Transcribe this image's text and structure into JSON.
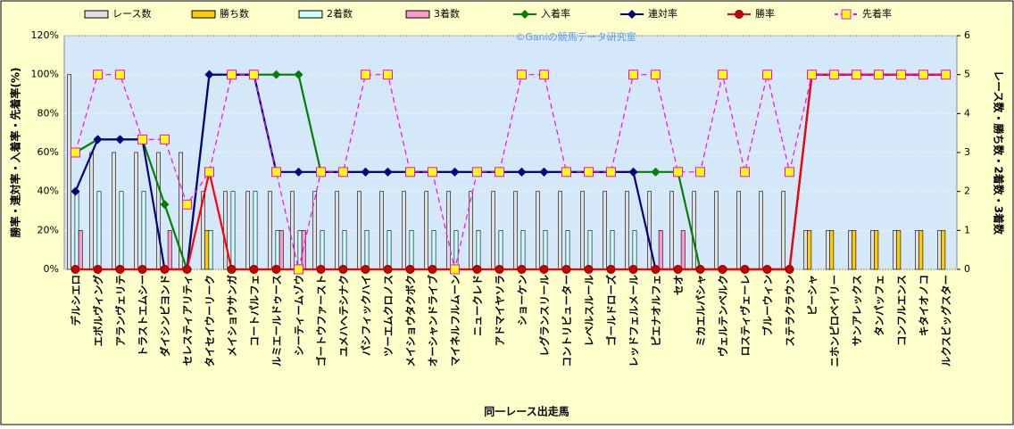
{
  "chart_data": {
    "type": "combo",
    "watermark": "©Ganiの競馬データ研究室",
    "x_label": "同一レース出走馬",
    "y_label": "勝率・連対率・入着率・先着率(%)",
    "y2_label": "レース数・勝ち数・2着数・3着数",
    "categories": [
      "デルシエロ",
      "エボルヴィング",
      "アランヴェリテ",
      "トラストエムシー",
      "ダイシンビヨンド",
      "セレスティアリティ",
      "タイセイウーリーク",
      "メイショウサンガ",
      "コートパルフェ",
      "ルミエールドゥース",
      "シーティームゾウ",
      "ゴートウファースト",
      "ユメハヘテシナク",
      "パシフィックハイ",
      "ツーエムクロノス",
      "メイショウタクボク",
      "オーシャンドライブ",
      "マイネルフルムーン",
      "ニュークレド",
      "アドマイヤソラ",
      "ショーケン",
      "レグランスリール",
      "コントリビューター",
      "レベルスルール",
      "ゴールドローズ",
      "レッドフェルメール",
      "ピエナオルフェ",
      "セオ",
      "ミカエルパシャ",
      "ヴェルテンベルク",
      "ロスティヴェーレ",
      "ブルーウィン",
      "ステラクラウン",
      "ピーシャ",
      "ニホンピロベイリー",
      "サンアレックス",
      "タンパッフェ",
      "コンフルエンス",
      "キタイオノコ",
      "ルクスビッグスター"
    ],
    "ylim": [
      0,
      120
    ],
    "yticks": [
      {
        "value": 0,
        "label": "0%"
      },
      {
        "value": 20,
        "label": "20%"
      },
      {
        "value": 40,
        "label": "40%"
      },
      {
        "value": 60,
        "label": "60%"
      },
      {
        "value": 80,
        "label": "80%"
      },
      {
        "value": 100,
        "label": "100%"
      },
      {
        "value": 120,
        "label": "120%"
      }
    ],
    "y2lim": [
      0,
      6
    ],
    "y2ticks": [
      0,
      1,
      2,
      3,
      4,
      5,
      6
    ],
    "grid": true,
    "series": [
      {
        "name": "レース数",
        "type": "bar",
        "axis": "y2",
        "color": "#e0e0e0",
        "values": [
          5,
          3,
          3,
          3,
          3,
          3,
          2,
          2,
          2,
          2,
          2,
          2,
          2,
          2,
          2,
          2,
          2,
          2,
          2,
          2,
          2,
          2,
          2,
          2,
          2,
          2,
          2,
          2,
          2,
          2,
          2,
          2,
          2,
          1,
          1,
          1,
          1,
          1,
          1,
          1
        ]
      },
      {
        "name": "勝ち数",
        "type": "bar",
        "axis": "y2",
        "color": "#ffcc00",
        "values": [
          0,
          0,
          0,
          0,
          0,
          0,
          1,
          0,
          0,
          0,
          0,
          0,
          0,
          0,
          0,
          0,
          0,
          0,
          0,
          0,
          0,
          0,
          0,
          0,
          0,
          0,
          0,
          0,
          0,
          0,
          0,
          0,
          0,
          1,
          1,
          1,
          1,
          1,
          1,
          1
        ]
      },
      {
        "name": "2着数",
        "type": "bar",
        "axis": "y2",
        "color": "#ccffff",
        "values": [
          2,
          2,
          2,
          2,
          0,
          0,
          1,
          2,
          2,
          1,
          1,
          1,
          1,
          1,
          1,
          1,
          1,
          1,
          1,
          1,
          1,
          1,
          1,
          1,
          1,
          1,
          0,
          0,
          0,
          0,
          0,
          0,
          0,
          0,
          0,
          0,
          0,
          0,
          0,
          0
        ]
      },
      {
        "name": "3着数",
        "type": "bar",
        "axis": "y2",
        "color": "#ff99cc",
        "values": [
          1,
          0,
          0,
          0,
          1,
          0,
          0,
          0,
          0,
          1,
          1,
          0,
          0,
          0,
          0,
          0,
          0,
          0,
          0,
          0,
          0,
          0,
          0,
          0,
          0,
          0,
          1,
          1,
          0,
          0,
          0,
          0,
          0,
          0,
          0,
          0,
          0,
          0,
          0,
          0
        ]
      },
      {
        "name": "入着率",
        "type": "line",
        "marker": "diamond",
        "color": "#008000",
        "values": [
          60,
          66.7,
          66.7,
          66.7,
          33.3,
          0,
          100,
          100,
          100,
          100,
          100,
          50,
          50,
          50,
          50,
          50,
          50,
          50,
          50,
          50,
          50,
          50,
          50,
          50,
          50,
          50,
          50,
          50,
          0,
          0,
          0,
          0,
          0,
          100,
          100,
          100,
          100,
          100,
          100,
          100
        ]
      },
      {
        "name": "連対率",
        "type": "line",
        "marker": "diamond",
        "color": "#000080",
        "values": [
          40,
          66.7,
          66.7,
          66.7,
          0,
          0,
          100,
          100,
          100,
          50,
          50,
          50,
          50,
          50,
          50,
          50,
          50,
          50,
          50,
          50,
          50,
          50,
          50,
          50,
          50,
          50,
          0,
          0,
          0,
          0,
          0,
          0,
          0,
          100,
          100,
          100,
          100,
          100,
          100,
          100
        ]
      },
      {
        "name": "勝率",
        "type": "line",
        "marker": "circle",
        "color": "#ff0000",
        "values": [
          0,
          0,
          0,
          0,
          0,
          0,
          50,
          0,
          0,
          0,
          0,
          0,
          0,
          0,
          0,
          0,
          0,
          0,
          0,
          0,
          0,
          0,
          0,
          0,
          0,
          0,
          0,
          0,
          0,
          0,
          0,
          0,
          0,
          100,
          100,
          100,
          100,
          100,
          100,
          100
        ]
      },
      {
        "name": "先着率",
        "type": "line",
        "marker": "square",
        "dashed": true,
        "color": "#ff00ff",
        "values": [
          60,
          100,
          100,
          66.7,
          66.7,
          33.3,
          50,
          100,
          100,
          50,
          0,
          50,
          50,
          100,
          100,
          50,
          50,
          0,
          50,
          50,
          100,
          100,
          50,
          50,
          50,
          100,
          100,
          50,
          50,
          100,
          50,
          100,
          50,
          100,
          100,
          100,
          100,
          100,
          100,
          100
        ]
      }
    ]
  }
}
